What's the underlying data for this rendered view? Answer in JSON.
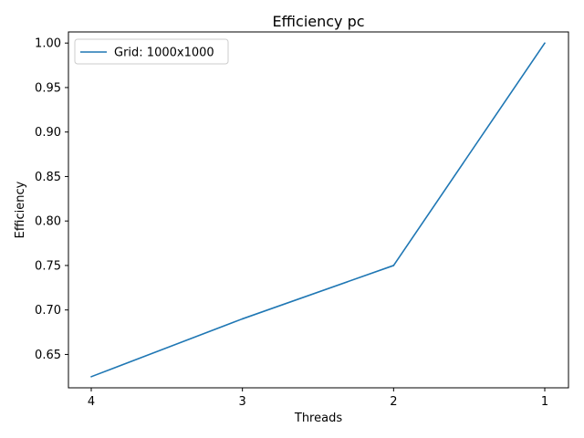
{
  "chart_data": {
    "type": "line",
    "title": "Efficiency pc",
    "xlabel": "Threads",
    "ylabel": "Efficiency",
    "categories": [
      "4",
      "3",
      "2",
      "1"
    ],
    "series": [
      {
        "name": "Grid: 1000x1000",
        "color": "#1f77b4",
        "values": [
          0.625,
          0.69,
          0.75,
          1.0
        ]
      }
    ],
    "ylim": [
      0.6125,
      1.0125
    ],
    "yticks": [
      "0.65",
      "0.70",
      "0.75",
      "0.80",
      "0.85",
      "0.90",
      "0.95",
      "1.00"
    ],
    "grid": false,
    "legend_position": "upper-left"
  }
}
